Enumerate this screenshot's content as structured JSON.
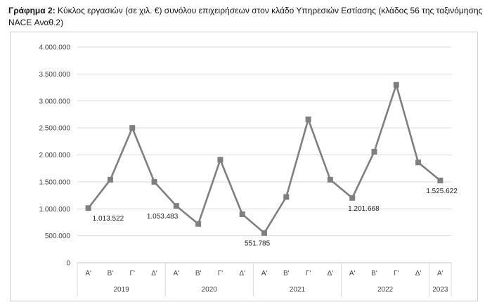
{
  "caption": {
    "label": "Γράφημα 2:",
    "text": "Κύκλος εργασιών (σε χιλ. €) συνόλου επιχειρήσεων στον κλάδο Υπηρεσιών Εστίασης (κλάδος 56 της ταξινόμησης NACE Αναθ.2)"
  },
  "chart_data": {
    "type": "line",
    "title": "",
    "xlabel": "",
    "ylabel": "",
    "ylim": [
      0,
      4000000
    ],
    "yticks": [
      0,
      500000,
      1000000,
      1500000,
      2000000,
      2500000,
      3000000,
      3500000,
      4000000
    ],
    "ytick_labels": [
      "0",
      "500.000",
      "1.000.000",
      "1.500.000",
      "2.000.000",
      "2.500.000",
      "3.000.000",
      "3.500.000",
      "4.000.000"
    ],
    "grid": true,
    "legend": false,
    "series_color": "#7f7f7f",
    "grid_color": "#d9d9d9",
    "categories": [
      "Α'",
      "Β'",
      "Γ'",
      "Δ'",
      "Α'",
      "Β'",
      "Γ'",
      "Δ'",
      "Α'",
      "Β'",
      "Γ'",
      "Δ'",
      "Α'",
      "Β'",
      "Γ'",
      "Δ'",
      "Α'"
    ],
    "groups": [
      {
        "label": "2019",
        "span": 4
      },
      {
        "label": "2020",
        "span": 4
      },
      {
        "label": "2021",
        "span": 4
      },
      {
        "label": "2022",
        "span": 4
      },
      {
        "label": "2023",
        "span": 1
      }
    ],
    "series": [
      {
        "values": [
          1013522,
          1540000,
          2500000,
          1500000,
          1053483,
          720000,
          1910000,
          900000,
          551785,
          1220000,
          2660000,
          1540000,
          1201668,
          2060000,
          3300000,
          1860000,
          1525622
        ]
      }
    ],
    "data_labels": [
      {
        "index": 0,
        "text": "1.013.522"
      },
      {
        "index": 4,
        "text": "1.053.483"
      },
      {
        "index": 8,
        "text": "551.785"
      },
      {
        "index": 12,
        "text": "1.201.668"
      },
      {
        "index": 16,
        "text": "1.525.622"
      }
    ]
  }
}
